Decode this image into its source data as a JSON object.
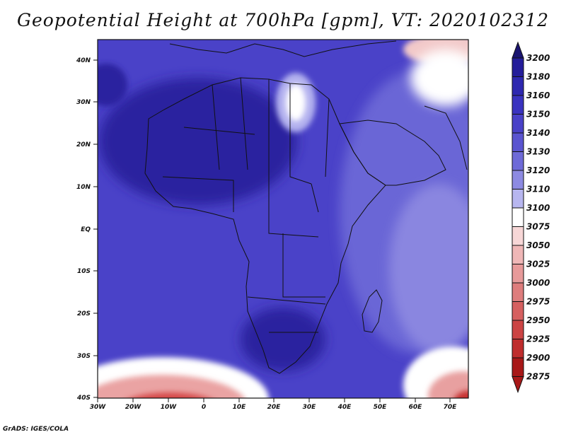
{
  "title": "Geopotential Height at 700hPa [gpm], VT: 2020102312",
  "footer": "GrADS: IGES/COLA",
  "lat_ticks": [
    "40N",
    "30N",
    "20N",
    "10N",
    "EQ",
    "10S",
    "20S",
    "30S",
    "40S"
  ],
  "lon_ticks": [
    "30W",
    "20W",
    "10W",
    "0",
    "10E",
    "20E",
    "30E",
    "40E",
    "50E",
    "60E",
    "70E"
  ],
  "colorbar": {
    "levels": [
      "3200",
      "3180",
      "3160",
      "3150",
      "3140",
      "3130",
      "3120",
      "3110",
      "3100",
      "3075",
      "3050",
      "3025",
      "3000",
      "2975",
      "2950",
      "2925",
      "2900",
      "2875"
    ],
    "colors": [
      "#1a1470",
      "#241d9a",
      "#2e28b0",
      "#3a33c0",
      "#4941c8",
      "#5a54d0",
      "#6e6ad8",
      "#8d8ae2",
      "#b7b6ef",
      "#ffffff",
      "#f7d7d7",
      "#efb7b7",
      "#e79a9a",
      "#de7d7d",
      "#d66060",
      "#cc4444",
      "#bf2d2d",
      "#a81818"
    ]
  },
  "colors": {
    "deep_blue": "#2a239f",
    "mid_blue": "#4a40c7",
    "light_blue": "#8a86e0",
    "white": "#ffffff",
    "red": "#d54848"
  }
}
